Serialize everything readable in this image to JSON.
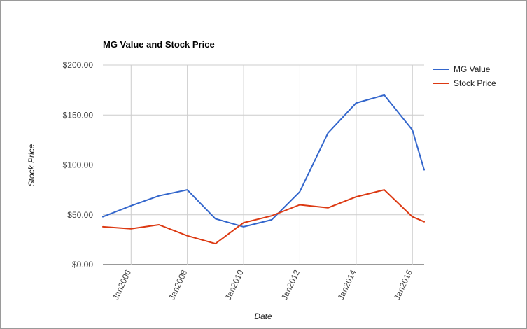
{
  "chart_data": {
    "type": "line",
    "title": "MG Value and Stock Price",
    "xlabel": "Date",
    "ylabel": "Stock Price",
    "x_tick_labels": [
      "Jan2006",
      "Jan2008",
      "Jan2010",
      "Jan2012",
      "Jan2014",
      "Jan2016"
    ],
    "y_tick_labels": [
      "$0.00",
      "$50.00",
      "$100.00",
      "$150.00",
      "$200.00"
    ],
    "ylim": [
      0,
      200
    ],
    "xlim": [
      "2004-12-31",
      "2016-06-01"
    ],
    "grid": true,
    "legend_position": "right",
    "series": [
      {
        "name": "MG Value",
        "color": "#3366cc",
        "points": [
          {
            "x": "2004-12-31",
            "y": 48
          },
          {
            "x": "2005-12-30",
            "y": 59
          },
          {
            "x": "2006-12-29",
            "y": 69
          },
          {
            "x": "2007-12-31",
            "y": 75
          },
          {
            "x": "2008-12-31",
            "y": 46
          },
          {
            "x": "2009-12-31",
            "y": 38
          },
          {
            "x": "2010-12-31",
            "y": 45
          },
          {
            "x": "2011-12-30",
            "y": 73
          },
          {
            "x": "2012-12-31",
            "y": 132
          },
          {
            "x": "2013-12-31",
            "y": 162
          },
          {
            "x": "2014-12-31",
            "y": 170
          },
          {
            "x": "2015-12-31",
            "y": 135
          },
          {
            "x": "2016-06-01",
            "y": 95
          }
        ]
      },
      {
        "name": "Stock Price",
        "color": "#dc3912",
        "points": [
          {
            "x": "2004-12-31",
            "y": 38
          },
          {
            "x": "2005-12-30",
            "y": 36
          },
          {
            "x": "2006-12-29",
            "y": 40
          },
          {
            "x": "2007-12-31",
            "y": 29
          },
          {
            "x": "2008-12-31",
            "y": 21
          },
          {
            "x": "2009-12-31",
            "y": 42
          },
          {
            "x": "2010-12-31",
            "y": 49
          },
          {
            "x": "2011-12-30",
            "y": 60
          },
          {
            "x": "2012-12-31",
            "y": 57
          },
          {
            "x": "2013-12-31",
            "y": 68
          },
          {
            "x": "2014-12-31",
            "y": 75
          },
          {
            "x": "2015-12-31",
            "y": 48
          },
          {
            "x": "2016-06-01",
            "y": 43
          }
        ]
      }
    ]
  }
}
